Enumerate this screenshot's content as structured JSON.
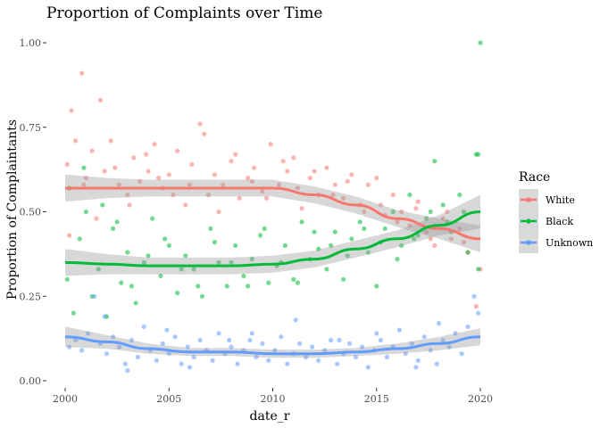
{
  "chart_data": {
    "type": "scatter",
    "title": "Proportion of Complaints over Time",
    "xlabel": "date_r",
    "ylabel": "Proportion of Complaintants",
    "xlim": [
      2000,
      2020
    ],
    "ylim": [
      0,
      1
    ],
    "x_ticks": [
      2000,
      2005,
      2010,
      2015,
      2020
    ],
    "x_tick_labels": [
      "2000",
      "2005",
      "2010",
      "2015",
      "2020"
    ],
    "y_ticks": [
      0,
      0.25,
      0.5,
      0.75,
      1
    ],
    "y_tick_labels": [
      "0.00",
      "0.25",
      "0.50",
      "0.75",
      "1.00"
    ],
    "grid": false,
    "legend": {
      "title": "Race",
      "placement": "right",
      "entries": [
        "White",
        "Black",
        "Unknown"
      ]
    },
    "series": [
      {
        "name": "White",
        "color": "#F8766D",
        "smooth": {
          "x": [
            2000,
            2002,
            2004,
            2006,
            2008,
            2010,
            2012,
            2014,
            2016,
            2018,
            2020
          ],
          "y": [
            0.57,
            0.57,
            0.57,
            0.57,
            0.57,
            0.57,
            0.55,
            0.52,
            0.48,
            0.45,
            0.42
          ],
          "band": [
            0.04,
            0.03,
            0.025,
            0.025,
            0.025,
            0.025,
            0.025,
            0.025,
            0.025,
            0.03,
            0.04
          ]
        },
        "points": {
          "x": [
            2000.1,
            2000.3,
            2000.5,
            2000.8,
            2001.0,
            2001.3,
            2001.7,
            2001.9,
            2002.2,
            2002.6,
            2003.0,
            2003.3,
            2003.6,
            2004.0,
            2004.3,
            2004.7,
            2005.0,
            2005.4,
            2005.8,
            2006.1,
            2006.5,
            2006.9,
            2007.2,
            2007.6,
            2008.0,
            2008.4,
            2008.8,
            2009.1,
            2009.5,
            2009.9,
            2010.3,
            2010.7,
            2011.0,
            2011.4,
            2011.8,
            2012.2,
            2012.6,
            2013.0,
            2013.4,
            2013.8,
            2014.2,
            2014.6,
            2015.0,
            2015.4,
            2015.8,
            2016.2,
            2016.6,
            2017.0,
            2017.4,
            2017.8,
            2018.2,
            2018.6,
            2019.0,
            2019.4,
            2019.8,
            2020.0,
            2000.2,
            2000.9,
            2001.5,
            2002.4,
            2003.1,
            2003.9,
            2004.5,
            2005.2,
            2006.0,
            2006.7,
            2007.4,
            2008.2,
            2009.0,
            2009.7,
            2010.5,
            2011.2,
            2012.0,
            2012.9,
            2013.6,
            2014.4,
            2015.2,
            2016.0,
            2016.9,
            2017.6,
            2018.4,
            2019.2
          ],
          "y": [
            0.64,
            0.8,
            0.71,
            0.91,
            0.6,
            0.68,
            0.83,
            0.62,
            0.71,
            0.58,
            0.55,
            0.66,
            0.59,
            0.62,
            0.7,
            0.57,
            0.61,
            0.68,
            0.52,
            0.64,
            0.76,
            0.55,
            0.61,
            0.58,
            0.65,
            0.54,
            0.6,
            0.63,
            0.56,
            0.7,
            0.58,
            0.62,
            0.66,
            0.51,
            0.6,
            0.55,
            0.63,
            0.58,
            0.54,
            0.61,
            0.52,
            0.58,
            0.6,
            0.49,
            0.55,
            0.5,
            0.46,
            0.53,
            0.44,
            0.4,
            0.48,
            0.42,
            0.45,
            0.38,
            0.22,
            0.33,
            0.43,
            0.58,
            0.48,
            0.63,
            0.52,
            0.67,
            0.6,
            0.55,
            0.58,
            0.73,
            0.5,
            0.67,
            0.59,
            0.54,
            0.65,
            0.57,
            0.62,
            0.55,
            0.59,
            0.5,
            0.52,
            0.47,
            0.51,
            0.42,
            0.5,
            0.41
          ]
        }
      },
      {
        "name": "Black",
        "color": "#00BA38",
        "smooth": {
          "x": [
            2000,
            2002,
            2004,
            2006,
            2008,
            2010,
            2012,
            2014,
            2016,
            2018,
            2020
          ],
          "y": [
            0.35,
            0.345,
            0.34,
            0.34,
            0.34,
            0.345,
            0.36,
            0.39,
            0.42,
            0.46,
            0.5
          ],
          "band": [
            0.04,
            0.03,
            0.025,
            0.025,
            0.025,
            0.025,
            0.025,
            0.025,
            0.025,
            0.03,
            0.05
          ]
        },
        "points": {
          "x": [
            2000.1,
            2000.4,
            2000.7,
            2001.0,
            2001.3,
            2001.6,
            2002.0,
            2002.3,
            2002.7,
            2003.0,
            2003.4,
            2003.8,
            2004.2,
            2004.6,
            2005.0,
            2005.4,
            2005.8,
            2006.2,
            2006.6,
            2007.0,
            2007.4,
            2007.8,
            2008.2,
            2008.6,
            2009.0,
            2009.4,
            2009.8,
            2010.2,
            2010.6,
            2011.0,
            2011.4,
            2011.8,
            2012.2,
            2012.6,
            2013.0,
            2013.4,
            2013.8,
            2014.2,
            2014.6,
            2015.0,
            2015.4,
            2015.8,
            2016.2,
            2016.6,
            2017.0,
            2017.4,
            2017.8,
            2018.2,
            2018.6,
            2019.0,
            2019.4,
            2019.8,
            2000.2,
            2000.9,
            2001.8,
            2002.5,
            2003.2,
            2004.0,
            2004.8,
            2005.6,
            2006.4,
            2007.2,
            2008.0,
            2008.8,
            2009.6,
            2010.4,
            2011.2,
            2012.0,
            2012.8,
            2013.6,
            2014.4,
            2015.2,
            2016.0,
            2016.8,
            2017.6,
            2018.4,
            2019.2,
            2019.9
          ],
          "y": [
            0.3,
            0.2,
            0.42,
            0.5,
            0.25,
            0.33,
            0.19,
            0.45,
            0.29,
            0.38,
            0.23,
            0.35,
            0.48,
            0.31,
            0.4,
            0.26,
            0.37,
            0.33,
            0.25,
            0.45,
            0.35,
            0.28,
            0.4,
            0.31,
            0.36,
            0.43,
            0.29,
            0.34,
            0.4,
            0.3,
            0.47,
            0.36,
            0.39,
            0.33,
            0.44,
            0.3,
            0.42,
            0.47,
            0.38,
            0.28,
            0.45,
            0.5,
            0.4,
            0.55,
            0.43,
            0.48,
            0.65,
            0.52,
            0.44,
            0.55,
            0.38,
            0.67,
            0.57,
            0.63,
            0.52,
            0.47,
            0.28,
            0.37,
            0.42,
            0.33,
            0.28,
            0.41,
            0.35,
            0.28,
            0.45,
            0.35,
            0.29,
            0.44,
            0.4,
            0.37,
            0.45,
            0.41,
            0.36,
            0.42,
            0.5,
            0.47,
            0.5,
            0.33
          ]
        }
      },
      {
        "name": "Unknown",
        "color": "#619CFF",
        "smooth": {
          "x": [
            2000,
            2002,
            2004,
            2006,
            2008,
            2010,
            2012,
            2014,
            2016,
            2018,
            2020
          ],
          "y": [
            0.13,
            0.115,
            0.095,
            0.085,
            0.085,
            0.08,
            0.08,
            0.085,
            0.095,
            0.11,
            0.13
          ],
          "band": [
            0.03,
            0.02,
            0.015,
            0.012,
            0.012,
            0.012,
            0.012,
            0.012,
            0.015,
            0.02,
            0.025
          ]
        },
        "points": {
          "x": [
            2000.2,
            2000.5,
            2000.8,
            2001.1,
            2001.4,
            2001.7,
            2002.0,
            2002.3,
            2002.6,
            2002.9,
            2003.2,
            2003.5,
            2003.8,
            2004.1,
            2004.4,
            2004.7,
            2005.0,
            2005.3,
            2005.6,
            2005.9,
            2006.2,
            2006.5,
            2006.8,
            2007.1,
            2007.4,
            2007.7,
            2008.0,
            2008.3,
            2008.6,
            2008.9,
            2009.2,
            2009.5,
            2009.8,
            2010.1,
            2010.4,
            2010.7,
            2011.0,
            2011.3,
            2011.6,
            2011.9,
            2012.2,
            2012.5,
            2012.8,
            2013.1,
            2013.4,
            2013.7,
            2014.0,
            2014.3,
            2014.6,
            2014.9,
            2015.2,
            2015.5,
            2015.8,
            2016.1,
            2016.4,
            2016.7,
            2017.0,
            2017.3,
            2017.6,
            2017.9,
            2018.2,
            2018.5,
            2018.8,
            2019.1,
            2019.4,
            2019.7,
            2019.9,
            2001.9,
            2003.0,
            2004.9,
            2006.0,
            2007.9,
            2009.0,
            2011.1,
            2013.2,
            2015.0,
            2016.9,
            2018.0
          ],
          "y": [
            0.1,
            0.12,
            0.09,
            0.14,
            0.25,
            0.11,
            0.08,
            0.13,
            0.1,
            0.05,
            0.12,
            0.07,
            0.16,
            0.09,
            0.06,
            0.11,
            0.08,
            0.13,
            0.05,
            0.1,
            0.07,
            0.12,
            0.09,
            0.06,
            0.14,
            0.08,
            0.1,
            0.05,
            0.09,
            0.12,
            0.07,
            0.11,
            0.06,
            0.09,
            0.13,
            0.05,
            0.08,
            0.11,
            0.07,
            0.1,
            0.06,
            0.09,
            0.12,
            0.05,
            0.08,
            0.11,
            0.07,
            0.1,
            0.04,
            0.09,
            0.12,
            0.07,
            0.1,
            0.15,
            0.08,
            0.11,
            0.06,
            0.13,
            0.09,
            0.05,
            0.12,
            0.1,
            0.14,
            0.08,
            0.16,
            0.25,
            0.2,
            0.19,
            0.03,
            0.15,
            0.04,
            0.12,
            0.14,
            0.18,
            0.12,
            0.14,
            0.04,
            0.17
          ]
        }
      }
    ],
    "outlier_points": [
      {
        "series": "Black",
        "x": 2020.0,
        "y": 1.0
      },
      {
        "series": "Black",
        "x": 2019.9,
        "y": 0.67
      }
    ]
  }
}
